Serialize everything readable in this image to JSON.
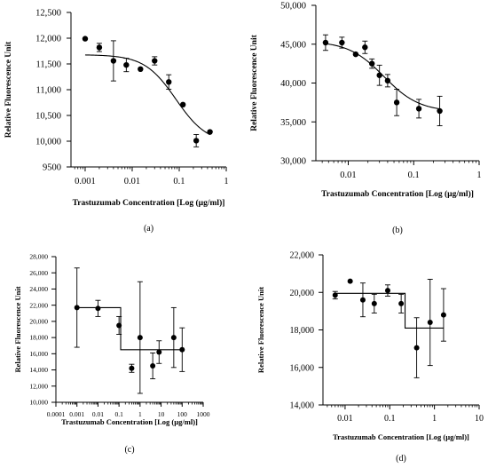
{
  "chart_data": [
    {
      "type": "scatter",
      "panel_label": "(a)",
      "xlabel": "Trastuzumab Concentration [Log (µg/ml)]",
      "ylabel": "Relative Fluorescence Unit",
      "xscale": "log",
      "xlim": [
        0.0005,
        1
      ],
      "ylim": [
        9500,
        12500
      ],
      "xticks": [
        0.001,
        0.01,
        0.1,
        1
      ],
      "xtick_labels": [
        "0.001",
        "0.01",
        "0.1",
        "1"
      ],
      "yticks": [
        9500,
        10000,
        10500,
        11000,
        11500,
        12000,
        12500
      ],
      "ytick_labels": [
        "9500",
        "10,000",
        "10,500",
        "11,000",
        "11,500",
        "12,000",
        "12,500"
      ],
      "points": [
        {
          "x": 0.001,
          "y": 11990,
          "err": 0
        },
        {
          "x": 0.002,
          "y": 11820,
          "err": 80
        },
        {
          "x": 0.004,
          "y": 11560,
          "err": 390
        },
        {
          "x": 0.0075,
          "y": 11480,
          "err": 130
        },
        {
          "x": 0.015,
          "y": 11400,
          "err": 0
        },
        {
          "x": 0.03,
          "y": 11560,
          "err": 80
        },
        {
          "x": 0.06,
          "y": 11150,
          "err": 140
        },
        {
          "x": 0.12,
          "y": 10710,
          "err": 0
        },
        {
          "x": 0.23,
          "y": 10010,
          "err": 120
        },
        {
          "x": 0.45,
          "y": 10180,
          "err": 0
        }
      ],
      "fit": {
        "kind": "sigmoid",
        "top": 11680,
        "bottom": 9950,
        "ec50": 0.085,
        "hill": 1.3,
        "x_range": [
          0.001,
          0.45
        ]
      }
    },
    {
      "type": "scatter",
      "panel_label": "(b)",
      "xlabel": "Trastuzumab Concentration [Log (µg/ml)]",
      "ylabel": "Relative Fluorescence Unit",
      "xscale": "log",
      "xlim": [
        0.0032,
        1
      ],
      "ylim": [
        30000,
        50000
      ],
      "xticks": [
        0.01,
        0.1,
        1
      ],
      "xtick_labels": [
        "0.01",
        "0.1",
        "1"
      ],
      "yticks": [
        30000,
        35000,
        40000,
        45000,
        50000
      ],
      "ytick_labels": [
        "30,000",
        "35,000",
        "40,000",
        "45,000",
        "50,000"
      ],
      "points": [
        {
          "x": 0.0045,
          "y": 45200,
          "err": 1000
        },
        {
          "x": 0.008,
          "y": 45200,
          "err": 700
        },
        {
          "x": 0.013,
          "y": 43700,
          "err": 0
        },
        {
          "x": 0.018,
          "y": 44600,
          "err": 800
        },
        {
          "x": 0.023,
          "y": 42500,
          "err": 600
        },
        {
          "x": 0.03,
          "y": 41000,
          "err": 1300
        },
        {
          "x": 0.04,
          "y": 40300,
          "err": 800
        },
        {
          "x": 0.055,
          "y": 37500,
          "err": 1700
        },
        {
          "x": 0.12,
          "y": 36700,
          "err": 1200
        },
        {
          "x": 0.25,
          "y": 36400,
          "err": 1900
        }
      ],
      "fit": {
        "kind": "sigmoid",
        "top": 45400,
        "bottom": 36300,
        "ec50": 0.035,
        "hill": 1.6,
        "x_range": [
          0.0045,
          0.25
        ]
      }
    },
    {
      "type": "scatter",
      "panel_label": "(c)",
      "xlabel": "Trastuzumab Concentration [Log (µg/ml)]",
      "ylabel": "Relative Fluorescence Unit",
      "xscale": "log",
      "xlim": [
        0.0001,
        1000
      ],
      "ylim": [
        10000,
        28000
      ],
      "xticks": [
        0.0001,
        0.001,
        0.01,
        0.1,
        1,
        10,
        100,
        1000
      ],
      "xtick_labels": [
        "0.0001",
        "0.001",
        "0.01",
        "0.1",
        "1",
        "10",
        "100",
        "1000"
      ],
      "yticks": [
        10000,
        12000,
        14000,
        16000,
        18000,
        20000,
        22000,
        24000,
        26000,
        28000
      ],
      "ytick_labels": [
        "10,000",
        "12,000",
        "14,000",
        "16,000",
        "18,000",
        "20,000",
        "22,000",
        "24,000",
        "26,000",
        "28,000"
      ],
      "points": [
        {
          "x": 0.001,
          "y": 21700,
          "err": 4900
        },
        {
          "x": 0.01,
          "y": 21600,
          "err": 1000
        },
        {
          "x": 0.1,
          "y": 19500,
          "err": 1100
        },
        {
          "x": 0.4,
          "y": 14200,
          "err": 500
        },
        {
          "x": 1,
          "y": 18000,
          "err": 6900
        },
        {
          "x": 4,
          "y": 14500,
          "err": 1600
        },
        {
          "x": 8,
          "y": 16200,
          "err": 1400
        },
        {
          "x": 40,
          "y": 18000,
          "err": 3700
        },
        {
          "x": 100,
          "y": 16500,
          "err": 2700
        }
      ],
      "fit": {
        "kind": "step",
        "top": 21700,
        "bottom": 16500,
        "ec50": 0.12,
        "x_range": [
          0.001,
          100
        ]
      }
    },
    {
      "type": "scatter",
      "panel_label": "(d)",
      "xlabel": "Trastuzumab Concentration [Log (µg/ml)]",
      "ylabel": "Relative Fluorescence Unit",
      "xscale": "log",
      "xlim": [
        0.0032,
        10
      ],
      "ylim": [
        14000,
        22000
      ],
      "xticks": [
        0.01,
        0.1,
        1,
        10
      ],
      "xtick_labels": [
        "0.01",
        "0.1",
        "1",
        "10"
      ],
      "yticks": [
        14000,
        16000,
        18000,
        20000,
        22000
      ],
      "ytick_labels": [
        "14,000",
        "16,000",
        "18,000",
        "20,000",
        "22,000"
      ],
      "points": [
        {
          "x": 0.006,
          "y": 19850,
          "err": 200
        },
        {
          "x": 0.013,
          "y": 20600,
          "err": 0
        },
        {
          "x": 0.025,
          "y": 19600,
          "err": 900
        },
        {
          "x": 0.045,
          "y": 19400,
          "err": 500
        },
        {
          "x": 0.09,
          "y": 20100,
          "err": 300
        },
        {
          "x": 0.18,
          "y": 19400,
          "err": 500
        },
        {
          "x": 0.4,
          "y": 17050,
          "err": 1600
        },
        {
          "x": 0.8,
          "y": 18400,
          "err": 2300
        },
        {
          "x": 1.6,
          "y": 18800,
          "err": 1400
        }
      ],
      "fit": {
        "kind": "step",
        "top": 19950,
        "bottom": 18100,
        "ec50": 0.22,
        "x_range": [
          0.006,
          1.6
        ]
      }
    }
  ]
}
